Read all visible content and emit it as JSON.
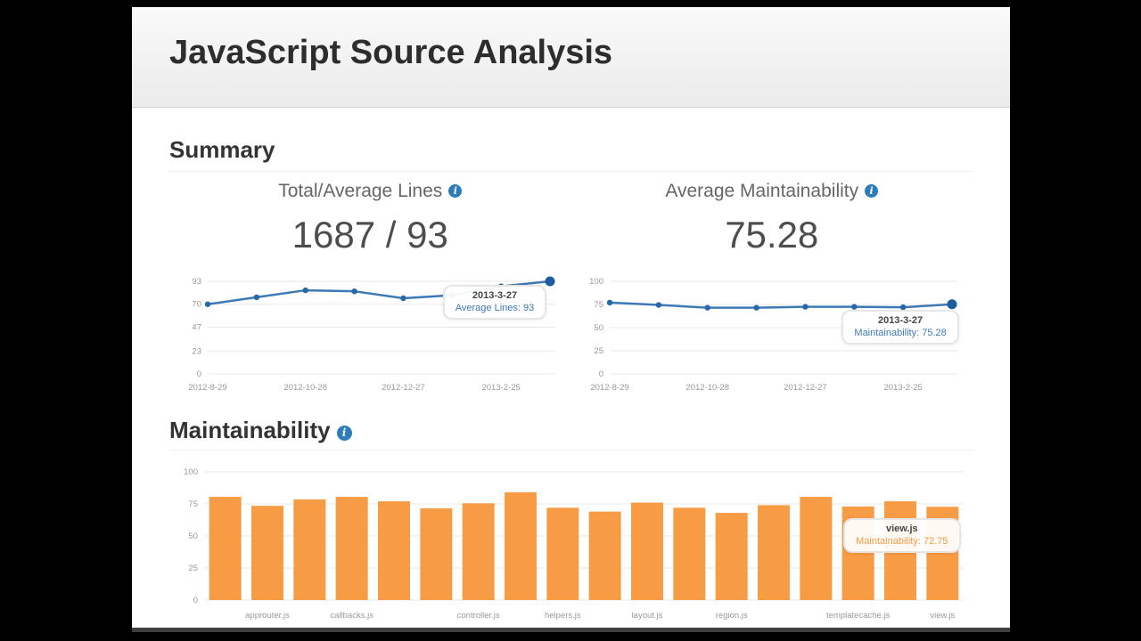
{
  "page": {
    "title": "JavaScript Source Analysis"
  },
  "icons": {
    "info_glyph": "i"
  },
  "summary": {
    "heading": "Summary"
  },
  "maintainability_section": {
    "heading": "Maintainability"
  },
  "colors": {
    "line": "#3d79b6",
    "point": "#2767aa",
    "point_end": "#1d5c9e",
    "bar": "#f79b45",
    "grid": "#e8e8e8",
    "tick_text": "#999999",
    "info_bg": "#2d7cba"
  },
  "chart_data": [
    {
      "type": "line",
      "name": "total-average-lines-history",
      "title": "Total/Average Lines",
      "display_value": "1687 / 93",
      "x_tick_labels": [
        "2012-8-29",
        "2012-10-28",
        "2012-12-27",
        "2013-2-25"
      ],
      "x_label_indices": [
        0,
        2,
        4,
        6
      ],
      "values": [
        70,
        77,
        84,
        83,
        76,
        79,
        88,
        93
      ],
      "y_ticks": [
        0,
        23,
        47,
        70,
        93
      ],
      "ylim": [
        0,
        93
      ],
      "grid": true,
      "tooltip": {
        "title": "2013-3-27",
        "text": "Average Lines: 93"
      }
    },
    {
      "type": "line",
      "name": "average-maintainability-history",
      "title": "Average Maintainability",
      "display_value": "75.28",
      "x_tick_labels": [
        "2012-8-29",
        "2012-10-28",
        "2012-12-27",
        "2013-2-25"
      ],
      "x_label_indices": [
        0,
        2,
        4,
        6
      ],
      "values": [
        77,
        74.5,
        71.5,
        71.5,
        72.5,
        72.5,
        72,
        75.28
      ],
      "y_ticks": [
        0,
        25,
        50,
        75,
        100
      ],
      "ylim": [
        0,
        100
      ],
      "grid": true,
      "tooltip": {
        "title": "2013-3-27",
        "text": "Maintainability: 75.28"
      }
    },
    {
      "type": "bar",
      "name": "maintainability-by-file",
      "title": "Maintainability",
      "values": [
        80.5,
        73.5,
        78.5,
        80.5,
        77,
        71.5,
        75.5,
        84,
        72,
        69,
        76,
        72,
        68,
        74,
        80.5,
        73,
        77,
        72.75
      ],
      "x_labels": [
        {
          "bar": 2,
          "label": "approuter.js"
        },
        {
          "bar": 4,
          "label": "callbacks.js"
        },
        {
          "bar": 7,
          "label": "controller.js"
        },
        {
          "bar": 9,
          "label": "helpers.js"
        },
        {
          "bar": 11,
          "label": "layout.js"
        },
        {
          "bar": 13,
          "label": "region.js"
        },
        {
          "bar": 16,
          "label": "templatecache.js"
        },
        {
          "bar": 18,
          "label": "view.js"
        }
      ],
      "y_ticks": [
        0,
        25,
        50,
        75,
        100
      ],
      "ylim": [
        0,
        100
      ],
      "grid": true,
      "tooltip": {
        "title": "view.js",
        "text": "Maintainability: 72.75"
      }
    }
  ]
}
